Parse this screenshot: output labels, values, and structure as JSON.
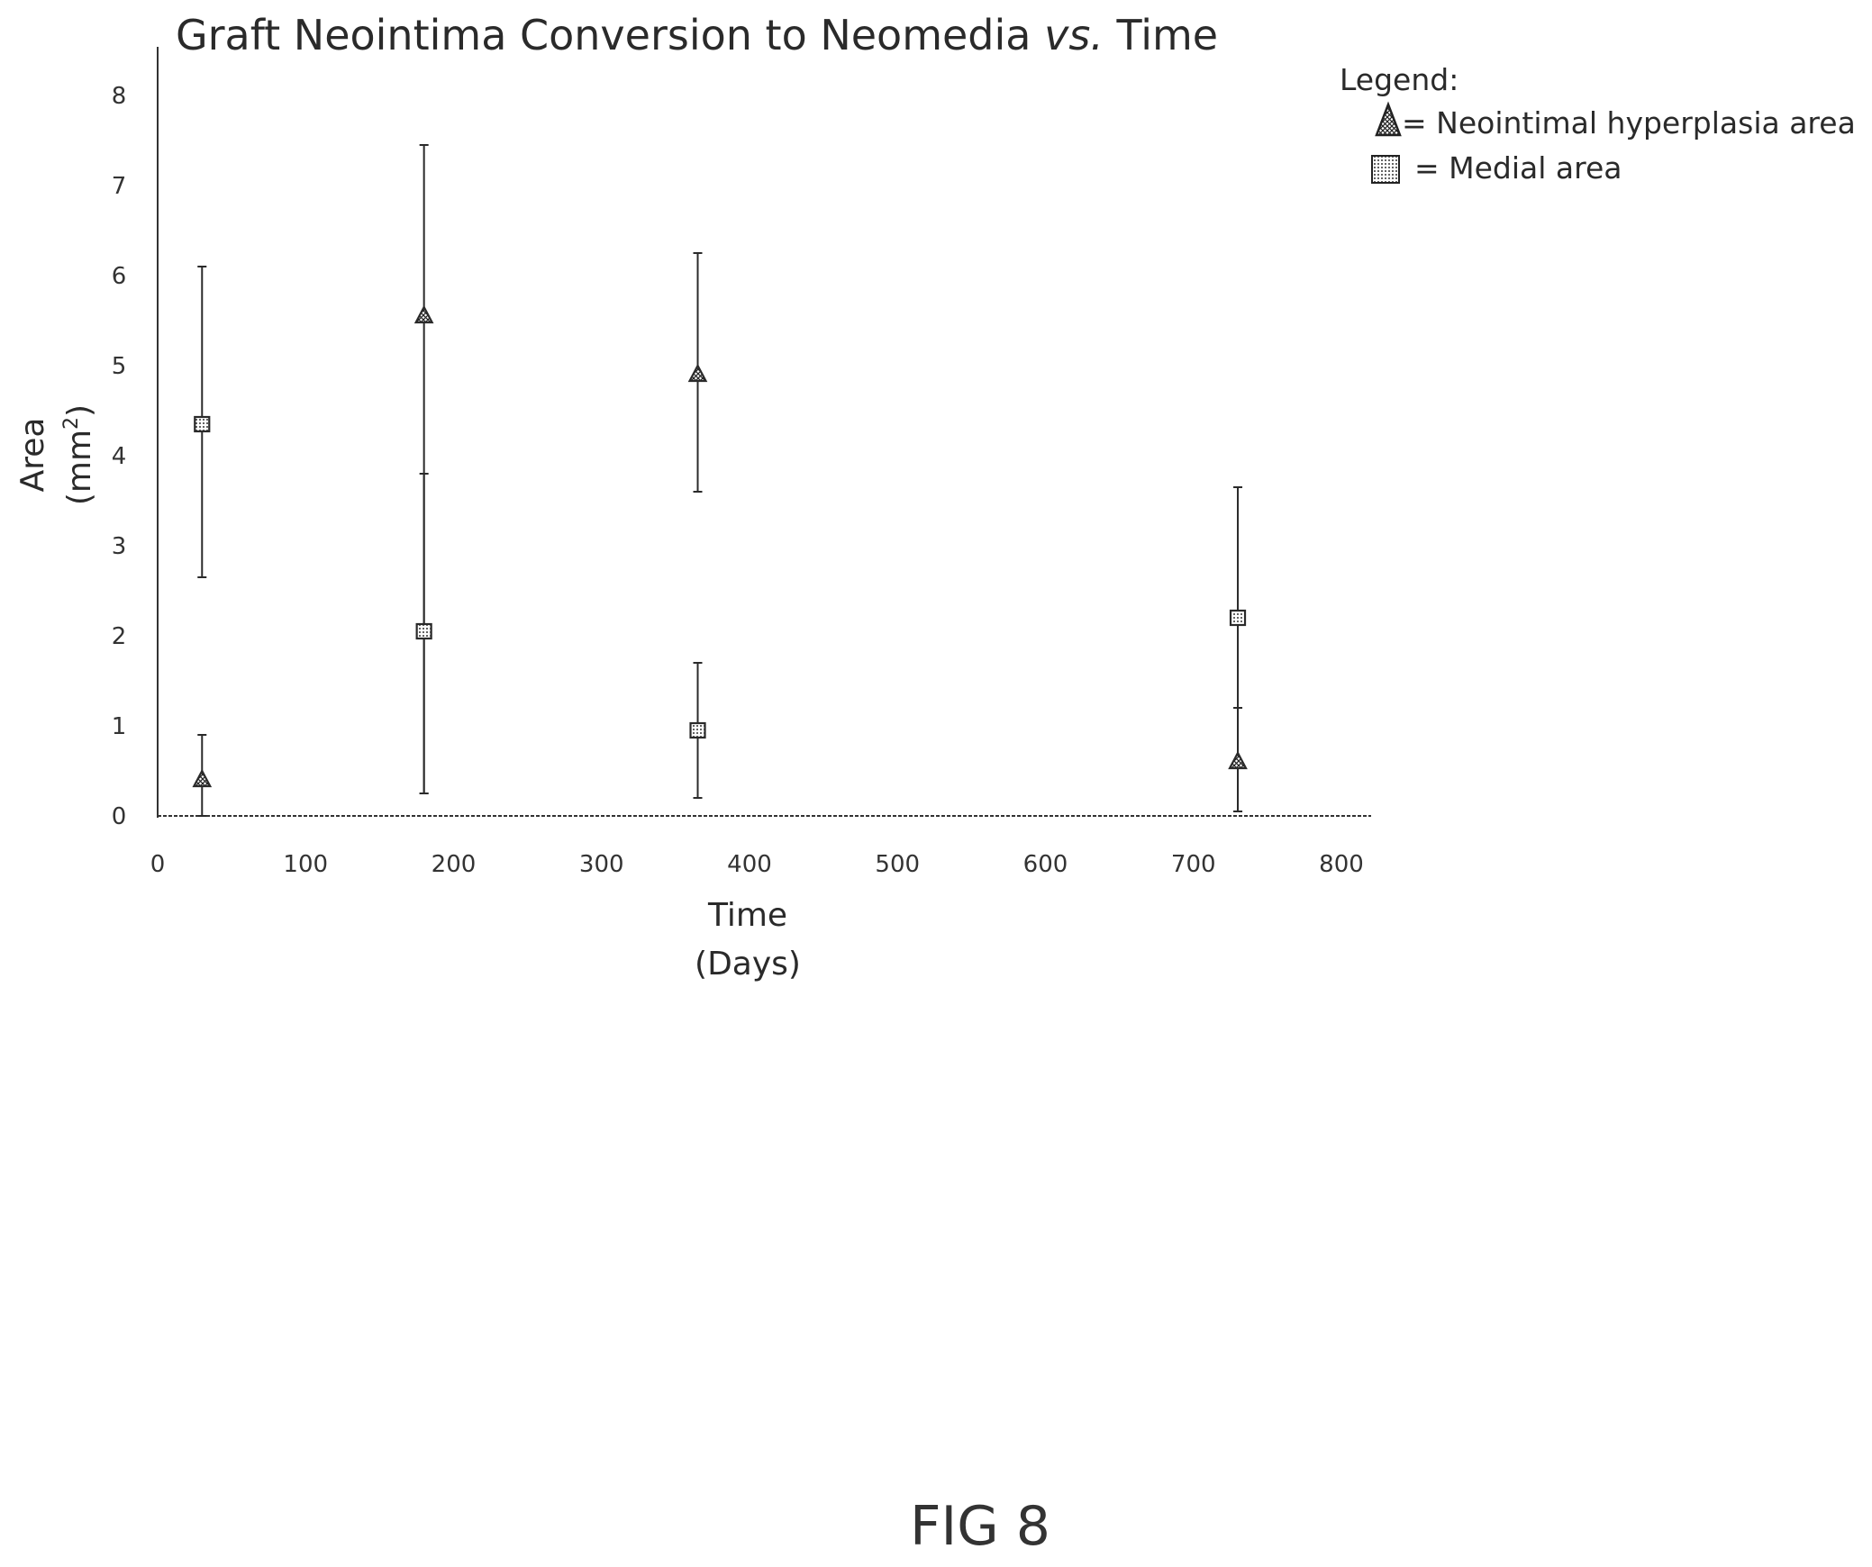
{
  "chart_data": {
    "type": "scatter",
    "title_parts": [
      "Graft Neointima Conversion to Neomedia ",
      "vs.",
      " Time"
    ],
    "xlabel": "Time",
    "xlabel_unit": "(Days)",
    "ylabel": "Area",
    "ylabel_unit_base": "(mm",
    "ylabel_unit_sup": "2",
    "ylabel_unit_end": ")",
    "xlim": [
      0,
      800
    ],
    "ylim": [
      0,
      8
    ],
    "x_ticks": [
      0,
      100,
      200,
      300,
      400,
      500,
      600,
      700,
      800
    ],
    "y_ticks": [
      0,
      1,
      2,
      3,
      4,
      5,
      6,
      7,
      8
    ],
    "legend_title": "Legend:",
    "legend_placement": "top-right",
    "series": [
      {
        "name": "= Neointimal hyperplasia area",
        "marker": "triangle",
        "points": [
          {
            "x": 30,
            "y": 0.4,
            "y_low": 0.0,
            "y_high": 0.9
          },
          {
            "x": 180,
            "y": 5.55,
            "y_low": 0.25,
            "y_high": 3.8
          },
          {
            "x": 365,
            "y": 4.9,
            "y_low": 3.6,
            "y_high": 6.25
          },
          {
            "x": 730,
            "y": 0.6,
            "y_low": 0.05,
            "y_high": 1.2
          }
        ]
      },
      {
        "name": "=  Medial area",
        "marker": "square",
        "points": [
          {
            "x": 30,
            "y": 4.35,
            "y_low": 2.65,
            "y_high": 6.1
          },
          {
            "x": 180,
            "y": 2.05,
            "y_low": 0.25,
            "y_high": 7.45
          },
          {
            "x": 365,
            "y": 0.95,
            "y_low": 0.2,
            "y_high": 1.7
          },
          {
            "x": 730,
            "y": 2.2,
            "y_low": 0.05,
            "y_high": 3.65
          }
        ]
      }
    ],
    "colors": {
      "ink": "#2a2a2a",
      "axis": "#333333"
    }
  },
  "figure_label": "FIG 8"
}
